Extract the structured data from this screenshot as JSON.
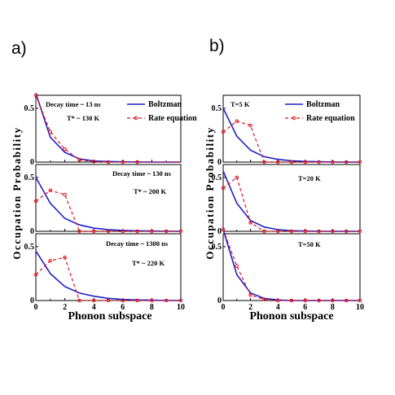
{
  "labels": {
    "a": "a)",
    "b": "b)"
  },
  "axes": {
    "xlabel": "Phonon subspace",
    "ylabel": "Occupation Probability",
    "xticks": [
      "0",
      "2",
      "4",
      "6",
      "8",
      "10"
    ],
    "yticks": [
      "0",
      "0.5"
    ]
  },
  "legend": {
    "boltzmann": "Boltzman",
    "rate": "Rate equation"
  },
  "colors": {
    "boltzmann": "#1f1fc8",
    "rate": "#e0141e"
  },
  "chart_data": [
    {
      "type": "line",
      "xlim": [
        0,
        10
      ],
      "ylim": [
        0,
        0.62
      ],
      "annotations": [
        "Decay time ~ 13 ns",
        "T* ~ 130 K"
      ],
      "x": [
        0,
        1,
        2,
        3,
        4,
        5,
        6,
        7,
        8,
        9,
        10
      ],
      "series": [
        {
          "name": "Boltzman",
          "values": [
            0.64,
            0.23,
            0.09,
            0.03,
            0.01,
            0.005,
            0.002,
            0.001,
            0,
            0,
            0
          ]
        },
        {
          "name": "Rate equation",
          "values": [
            0.62,
            0.28,
            0.12,
            0.02,
            0.005,
            0,
            0,
            0,
            0,
            0,
            0
          ]
        }
      ]
    },
    {
      "type": "line",
      "xlim": [
        0,
        10
      ],
      "ylim": [
        0,
        0.62
      ],
      "annotations": [
        "Decay time ~ 130 ns",
        "T* ~ 200 K"
      ],
      "x": [
        0,
        1,
        2,
        3,
        4,
        5,
        6,
        7,
        8,
        9,
        10
      ],
      "series": [
        {
          "name": "Boltzman",
          "values": [
            0.5,
            0.26,
            0.12,
            0.06,
            0.03,
            0.015,
            0.008,
            0.004,
            0.002,
            0.001,
            0
          ]
        },
        {
          "name": "Rate equation",
          "values": [
            0.28,
            0.38,
            0.34,
            0,
            0,
            0,
            0,
            0,
            0,
            0,
            0
          ]
        }
      ]
    },
    {
      "type": "line",
      "xlim": [
        0,
        10
      ],
      "ylim": [
        0,
        0.62
      ],
      "annotations": [
        "Decay time ~ 1300 ns",
        "T* ~ 220 K"
      ],
      "x": [
        0,
        1,
        2,
        3,
        4,
        5,
        6,
        7,
        8,
        9,
        10
      ],
      "series": [
        {
          "name": "Boltzman",
          "values": [
            0.46,
            0.25,
            0.13,
            0.07,
            0.04,
            0.02,
            0.01,
            0.005,
            0.003,
            0.001,
            0
          ]
        },
        {
          "name": "Rate equation",
          "values": [
            0.24,
            0.37,
            0.4,
            0,
            0,
            0,
            0,
            0,
            0,
            0,
            0
          ]
        }
      ]
    },
    {
      "type": "line",
      "xlim": [
        0,
        10
      ],
      "ylim": [
        0,
        0.62
      ],
      "annotations": [
        "T=5 K"
      ],
      "x": [
        0,
        1,
        2,
        3,
        4,
        5,
        6,
        7,
        8,
        9,
        10
      ],
      "series": [
        {
          "name": "Boltzman",
          "values": [
            0.5,
            0.24,
            0.11,
            0.05,
            0.025,
            0.012,
            0.006,
            0.003,
            0.001,
            0,
            0
          ]
        },
        {
          "name": "Rate equation",
          "values": [
            0.28,
            0.38,
            0.34,
            0,
            0,
            0,
            0,
            0,
            0,
            0,
            0
          ]
        }
      ]
    },
    {
      "type": "line",
      "xlim": [
        0,
        10
      ],
      "ylim": [
        0,
        0.62
      ],
      "annotations": [
        "T=20 K"
      ],
      "x": [
        0,
        1,
        2,
        3,
        4,
        5,
        6,
        7,
        8,
        9,
        10
      ],
      "series": [
        {
          "name": "Boltzman",
          "values": [
            0.56,
            0.26,
            0.1,
            0.04,
            0.015,
            0.005,
            0.002,
            0,
            0,
            0,
            0
          ]
        },
        {
          "name": "Rate equation",
          "values": [
            0.4,
            0.5,
            0.08,
            0,
            0,
            0,
            0,
            0,
            0,
            0,
            0
          ]
        }
      ]
    },
    {
      "type": "line",
      "xlim": [
        0,
        10
      ],
      "ylim": [
        0,
        0.62
      ],
      "annotations": [
        "T=50 K"
      ],
      "x": [
        0,
        1,
        2,
        3,
        4,
        5,
        6,
        7,
        8,
        9,
        10
      ],
      "series": [
        {
          "name": "Boltzman",
          "values": [
            0.66,
            0.24,
            0.07,
            0.02,
            0.005,
            0,
            0,
            0,
            0,
            0,
            0
          ]
        },
        {
          "name": "Rate equation",
          "values": [
            0.66,
            0.32,
            0.05,
            0.01,
            0,
            0,
            0,
            0,
            0,
            0,
            0
          ]
        }
      ]
    }
  ]
}
